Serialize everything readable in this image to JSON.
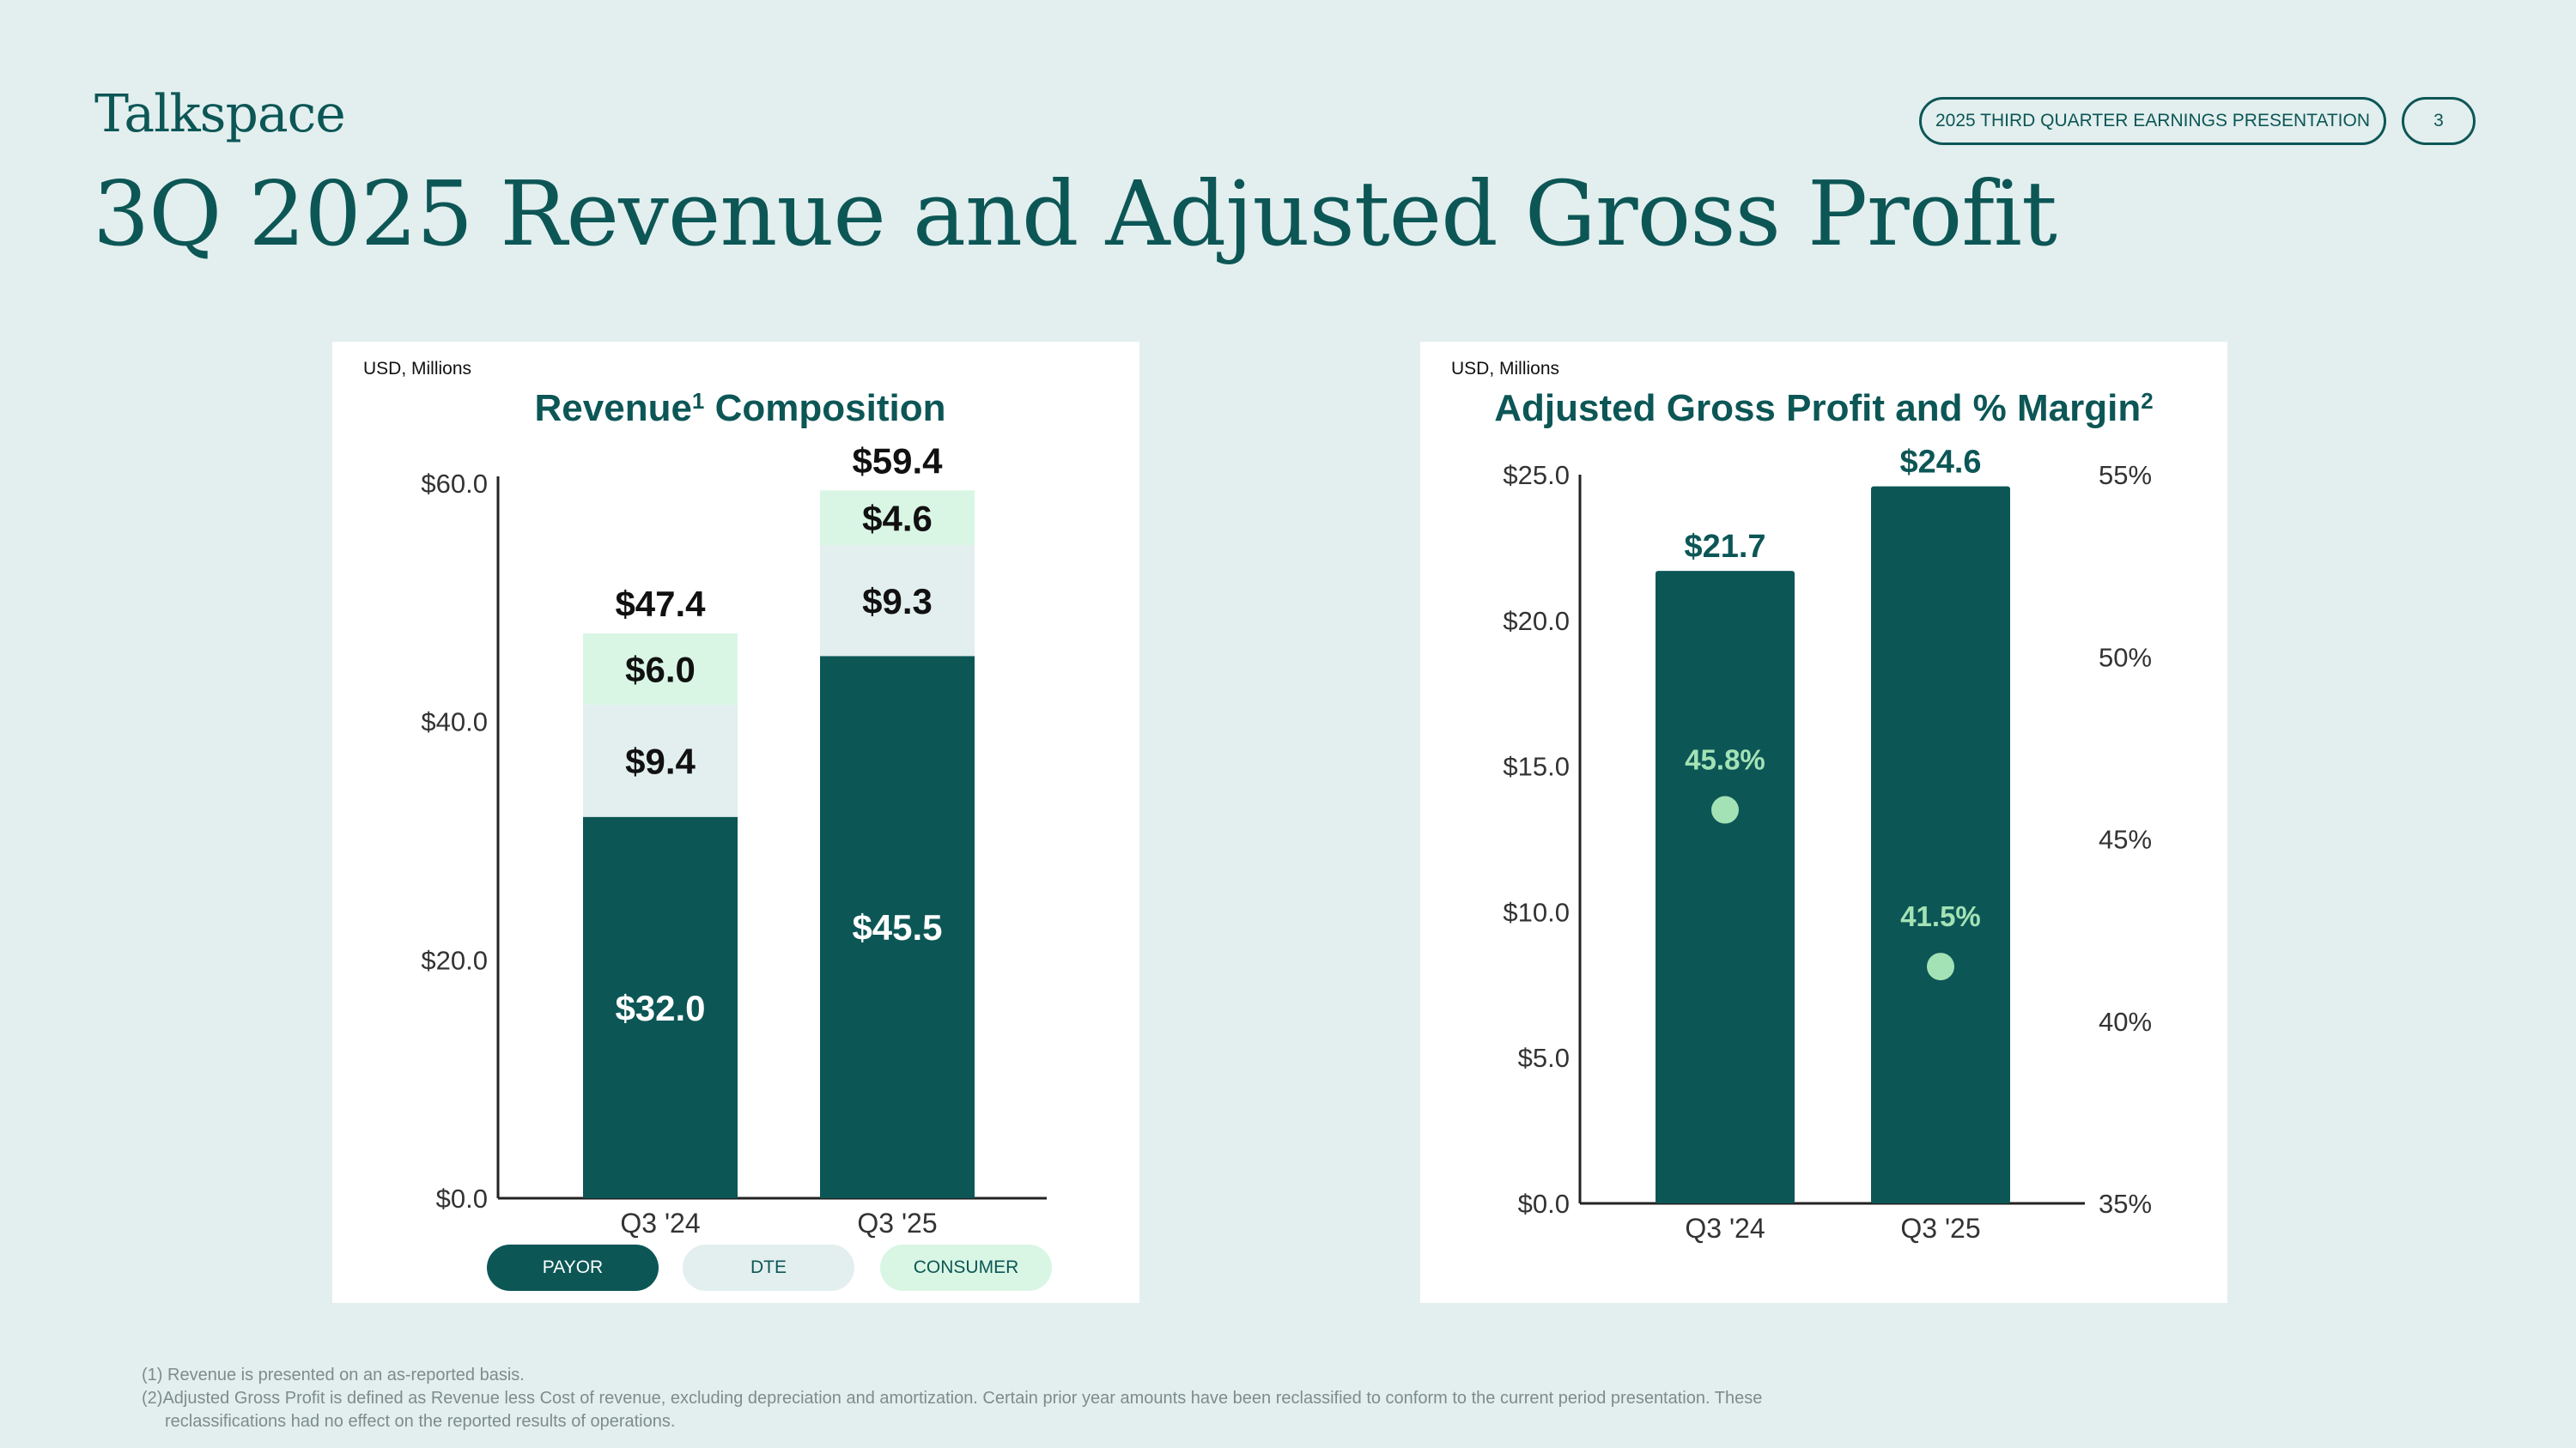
{
  "header": {
    "logo": "Talkspace",
    "presentation": "2025 THIRD QUARTER EARNINGS PRESENTATION",
    "page_number": "3",
    "title": "3Q 2025 Revenue and Adjusted Gross Profit"
  },
  "colors": {
    "background": "#e2efee",
    "teal": "#0d5656",
    "dte": "#e2efee",
    "consumer": "#d9f6e4",
    "margin_marker": "#a3e2b5"
  },
  "chart_data": [
    {
      "type": "bar",
      "stacked": true,
      "unit_label": "USD, Millions",
      "title": "Revenue",
      "title_sup": "1",
      "title_suffix": " Composition",
      "categories": [
        "Q3 '24",
        "Q3 '25"
      ],
      "series": [
        {
          "name": "PAYOR",
          "values": [
            32.0,
            45.5
          ],
          "labels": [
            "$32.0",
            "$45.5"
          ]
        },
        {
          "name": "DTE",
          "values": [
            9.4,
            9.3
          ],
          "labels": [
            "$9.4",
            "$9.3"
          ]
        },
        {
          "name": "CONSUMER",
          "values": [
            6.0,
            4.6
          ],
          "labels": [
            "$6.0",
            "$4.6"
          ]
        }
      ],
      "totals": [
        47.4,
        59.4
      ],
      "total_labels": [
        "$47.4",
        "$59.4"
      ],
      "ylim": [
        0,
        60
      ],
      "yticks": [
        0,
        20,
        40,
        60
      ],
      "ytick_labels": [
        "$0.0",
        "$20.0",
        "$40.0",
        "$60.0"
      ],
      "legend": [
        "PAYOR",
        "DTE",
        "CONSUMER"
      ],
      "legend_placement": "bottom"
    },
    {
      "type": "bar",
      "unit_label": "USD, Millions",
      "title": "Adjusted Gross Profit and % Margin",
      "title_sup": "2",
      "categories": [
        "Q3 '24",
        "Q3 '25"
      ],
      "series": [
        {
          "name": "Adjusted Gross Profit",
          "values": [
            21.7,
            24.6
          ],
          "labels": [
            "$21.7",
            "$24.6"
          ]
        },
        {
          "name": "% Margin",
          "type": "scatter",
          "axis": "right",
          "values": [
            45.8,
            41.5
          ],
          "labels": [
            "45.8%",
            "41.5%"
          ]
        }
      ],
      "ylim": [
        0,
        25
      ],
      "yticks": [
        0,
        5,
        10,
        15,
        20,
        25
      ],
      "ytick_labels": [
        "$0.0",
        "$5.0",
        "$10.0",
        "$15.0",
        "$20.0",
        "$25.0"
      ],
      "y2lim": [
        35,
        55
      ],
      "y2ticks": [
        35,
        40,
        45,
        50,
        55
      ],
      "y2tick_labels": [
        "35%",
        "40%",
        "45%",
        "50%",
        "55%"
      ]
    }
  ],
  "footnotes": [
    {
      "num": "(1)",
      "text": " Revenue is presented on an as-reported basis.",
      "cont": ""
    },
    {
      "num": "(2)",
      "text": "Adjusted Gross Profit is defined as Revenue less Cost of revenue, excluding depreciation and amortization. Certain prior year amounts have been reclassified to conform to the current period presentation. These",
      "cont": "reclassifications had no effect on the reported results of operations."
    }
  ]
}
